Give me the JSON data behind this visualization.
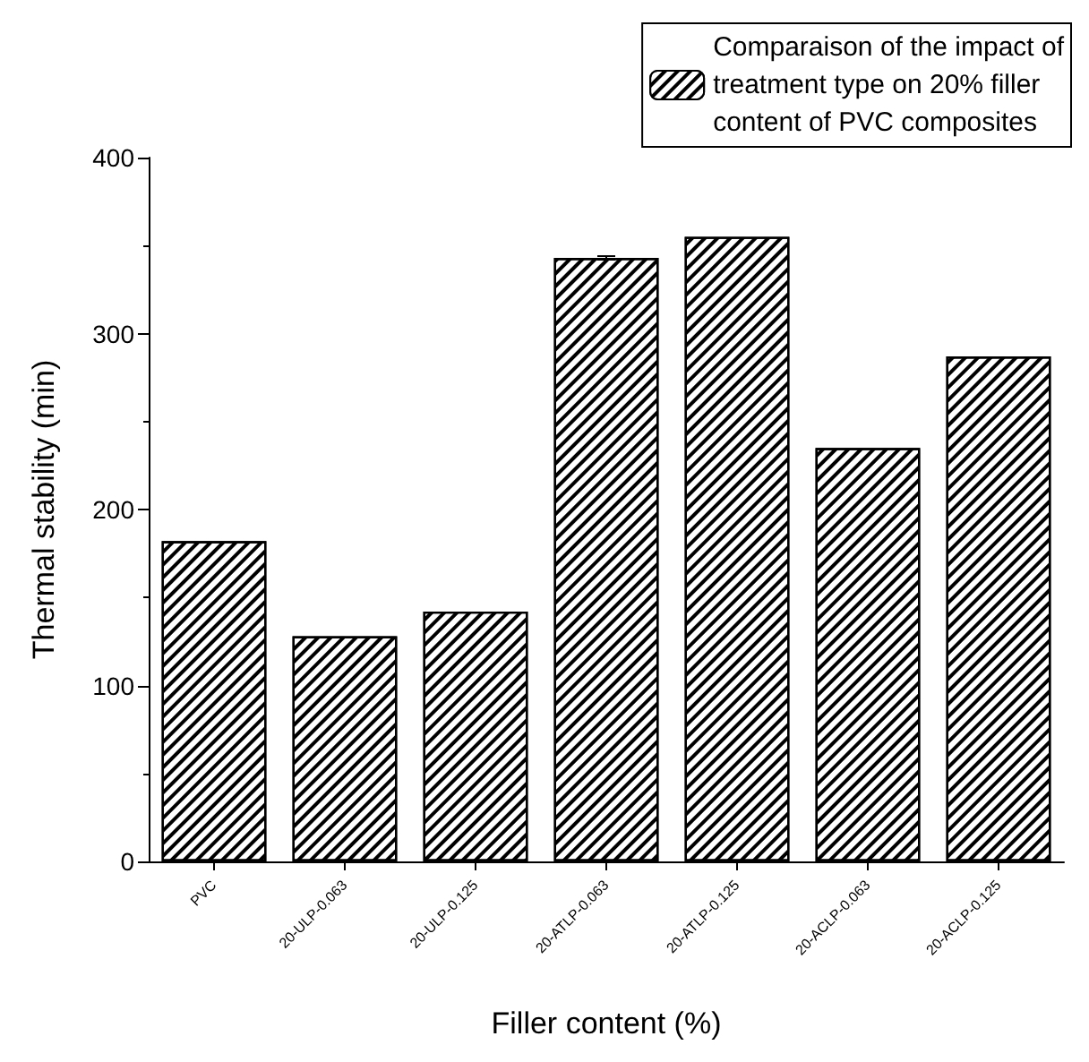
{
  "chart_data": {
    "type": "bar",
    "xlabel": "Filler content (%)",
    "ylabel": "Thermal stability (min)",
    "categories": [
      "PVC",
      "20-ULP-0.063",
      "20-ULP-0.125",
      "20-ATLP-0.063",
      "20-ATLP-0.125",
      "20-ACLP-0.063",
      "20-ACLP-0.125"
    ],
    "series": [
      {
        "name": "Comparaison of the impact of\ntreatment type on 20% filler\ncontent of PVC composites",
        "color": "#ffffff",
        "values": [
          182,
          128,
          142,
          343,
          355,
          235,
          287
        ],
        "errors": [
          null,
          null,
          null,
          1,
          null,
          null,
          null
        ]
      }
    ],
    "ylim": [
      0,
      400
    ],
    "yticks": [
      0,
      100,
      200,
      300,
      400
    ],
    "grid": false,
    "legend": "top right"
  }
}
